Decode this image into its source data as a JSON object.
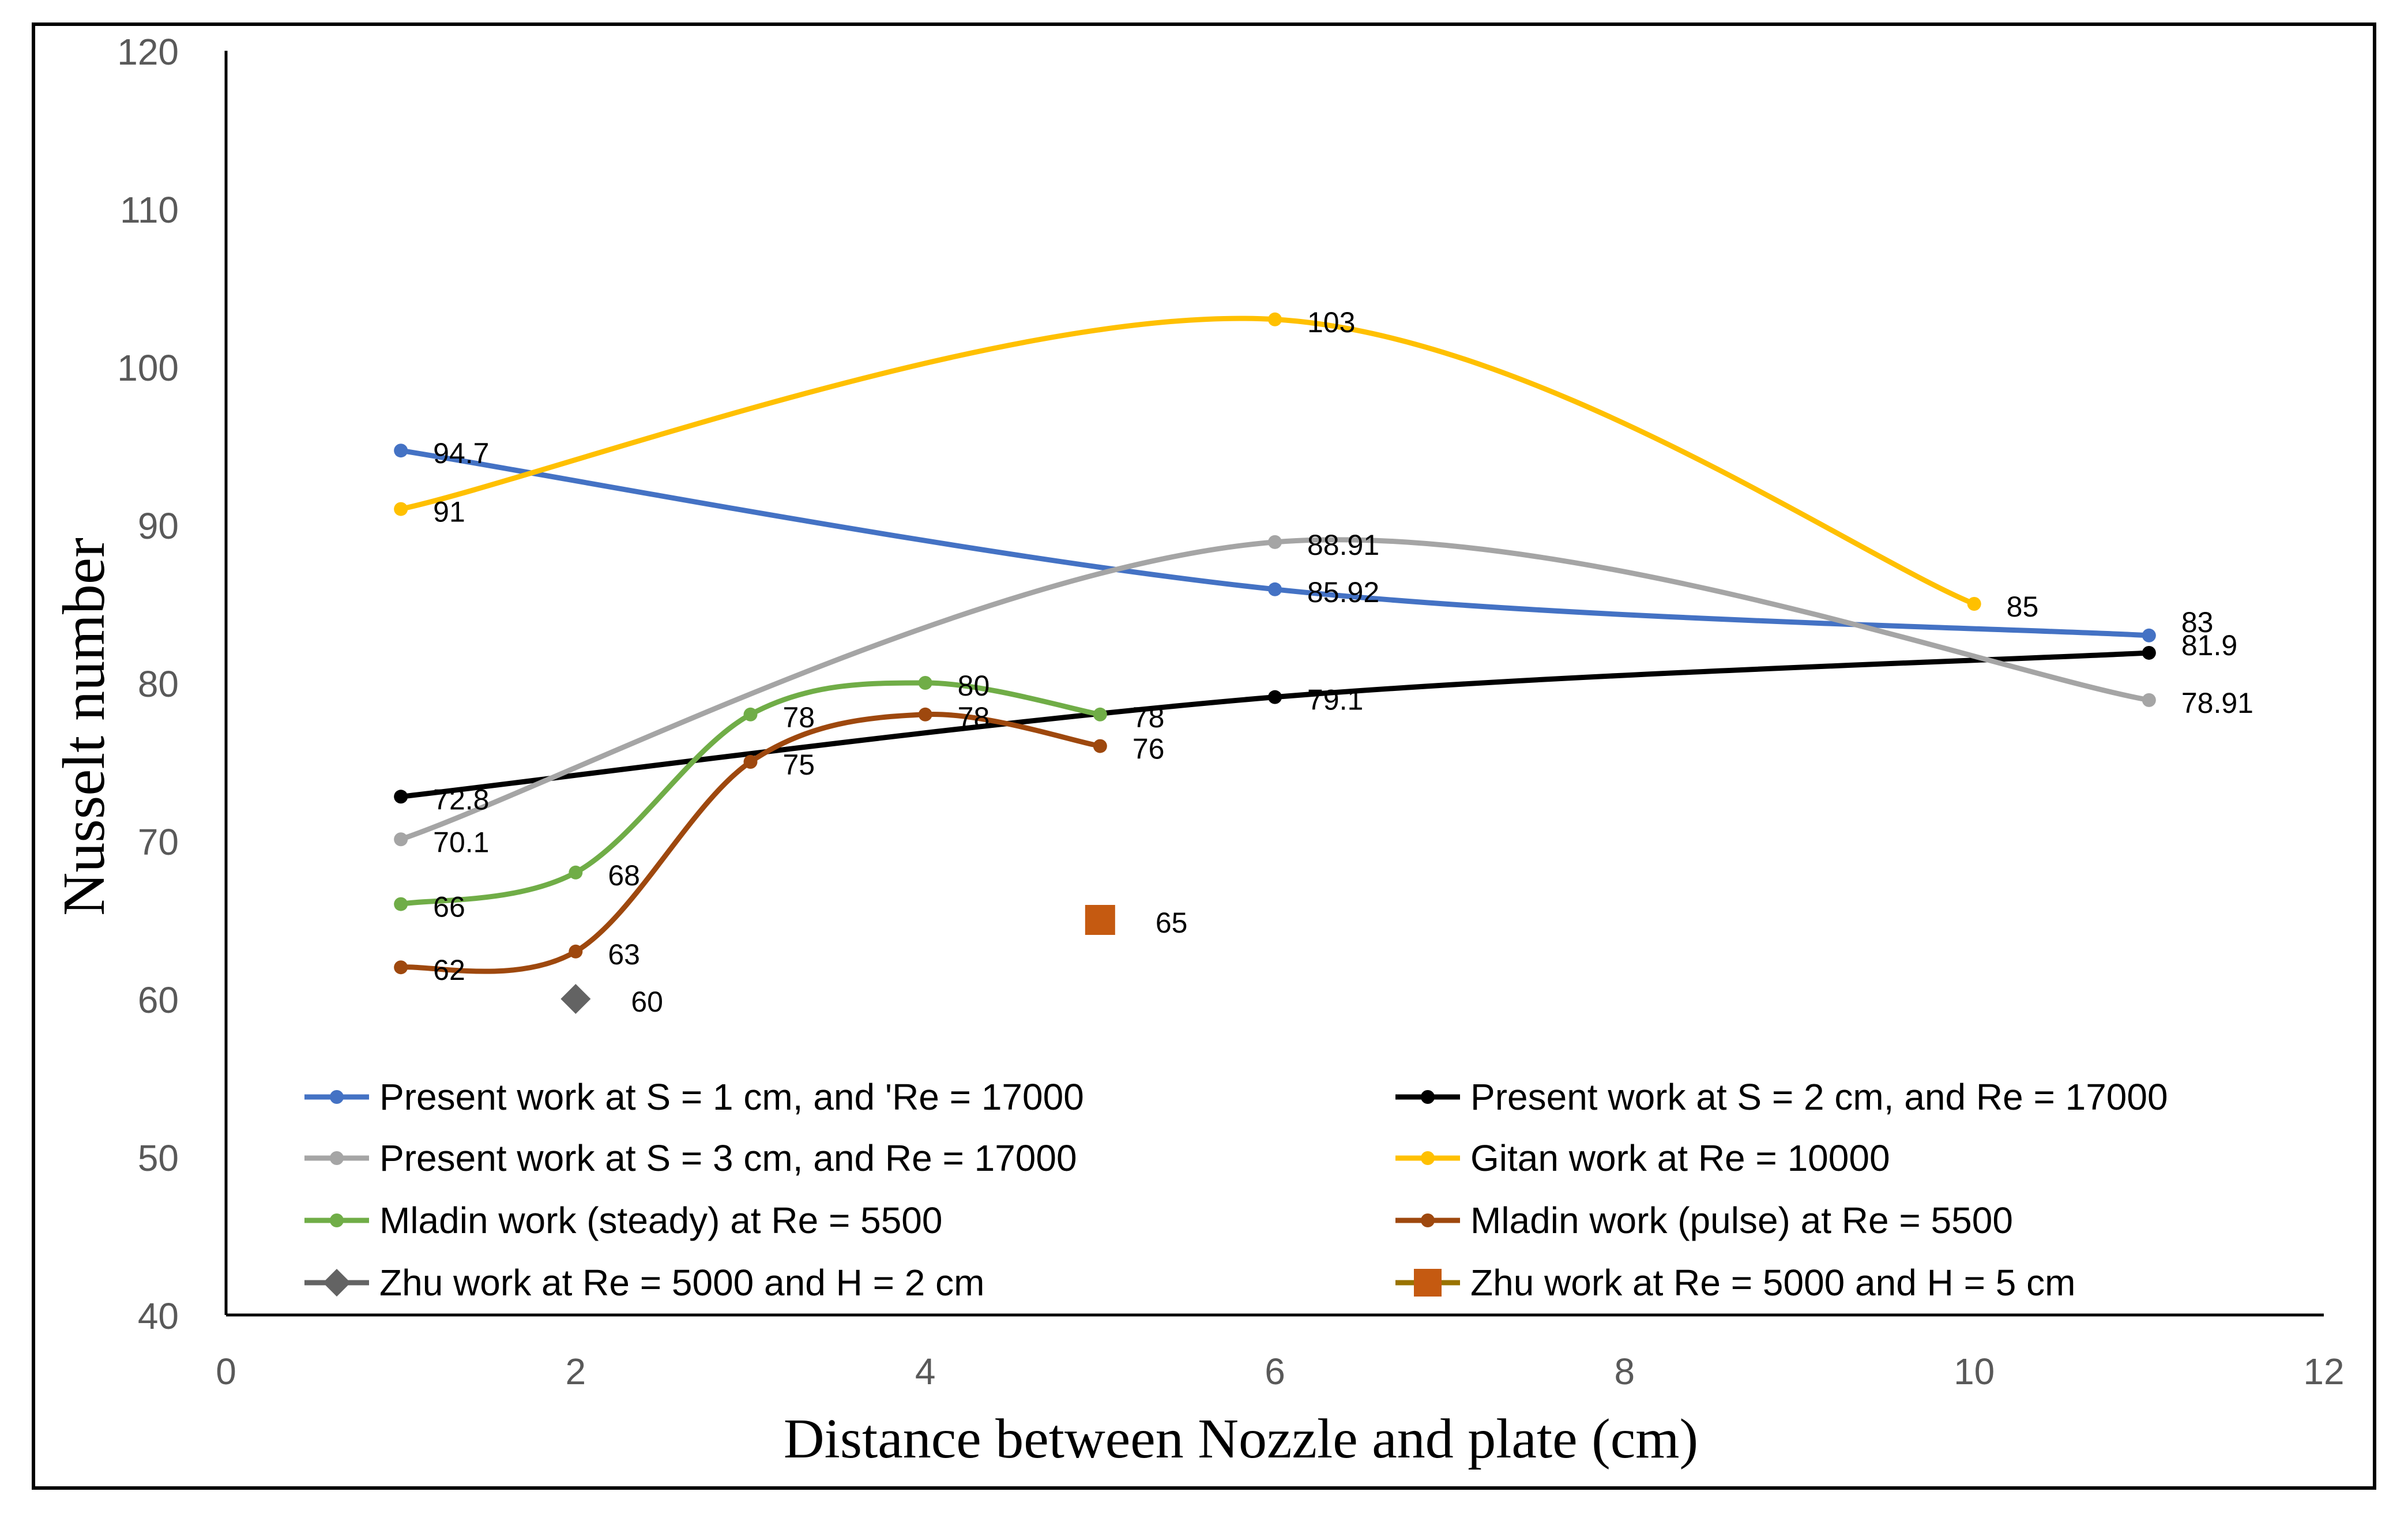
{
  "chart_data": {
    "type": "line",
    "title": "",
    "xlabel": "Distance between Nozzle and plate (cm)",
    "ylabel": "Nusselt number",
    "xlim": [
      0,
      12
    ],
    "ylim": [
      40,
      120
    ],
    "x_ticks": [
      "0",
      "2",
      "4",
      "6",
      "8",
      "10",
      "12"
    ],
    "y_ticks": [
      "40",
      "50",
      "60",
      "70",
      "80",
      "90",
      "100",
      "110",
      "120"
    ],
    "grid": false,
    "legend_position": "bottom-inside",
    "series": [
      {
        "name": "Present work at S = 1 cm, and 'Re = 17000",
        "color": "#4472C4",
        "marker": "dot",
        "x": [
          1,
          6,
          11
        ],
        "y": [
          94.7,
          85.92,
          83
        ],
        "labels": [
          "94.7",
          "85.92",
          "83"
        ]
      },
      {
        "name": "Present work at S = 2 cm, and Re = 17000",
        "color": "#000000",
        "marker": "dot",
        "x": [
          1,
          6,
          11
        ],
        "y": [
          72.8,
          79.1,
          81.9
        ],
        "labels": [
          "72.8",
          "79.1",
          "81.9"
        ]
      },
      {
        "name": "Present work at S = 3 cm, and Re = 17000",
        "color": "#A5A5A5",
        "marker": "dot",
        "x": [
          1,
          6,
          11
        ],
        "y": [
          70.1,
          88.91,
          78.91
        ],
        "labels": [
          "70.1",
          "88.91",
          "78.91"
        ]
      },
      {
        "name": "Gitan work at Re = 10000",
        "color": "#FFC000",
        "marker": "dot",
        "x": [
          1,
          6,
          10
        ],
        "y": [
          91,
          103,
          85
        ],
        "labels": [
          "91",
          "103",
          "85"
        ]
      },
      {
        "name": "Mladin work (steady) at Re = 5500",
        "color": "#70AD47",
        "marker": "dot",
        "x": [
          1,
          2,
          3,
          4,
          5
        ],
        "y": [
          66,
          68,
          78,
          80,
          78
        ],
        "labels": [
          "66",
          "68",
          "78",
          "80",
          "78"
        ]
      },
      {
        "name": "Mladin work (pulse) at Re = 5500",
        "color": "#9E480E",
        "marker": "dot",
        "x": [
          1,
          2,
          3,
          4,
          5
        ],
        "y": [
          62,
          63,
          75,
          78,
          76
        ],
        "labels": [
          "62",
          "63",
          "75",
          "78",
          "76"
        ]
      },
      {
        "name": "Zhu work at Re = 5000 and H = 2 cm",
        "color": "#636363",
        "marker": "diamond",
        "x": [
          2
        ],
        "y": [
          60
        ],
        "labels": [
          "60"
        ]
      },
      {
        "name": "Zhu work at Re = 5000 and H = 5 cm",
        "color": "#C55A11",
        "legend_line_color": "#997300",
        "marker": "square",
        "x": [
          5
        ],
        "y": [
          65
        ],
        "labels": [
          "65"
        ]
      }
    ]
  }
}
